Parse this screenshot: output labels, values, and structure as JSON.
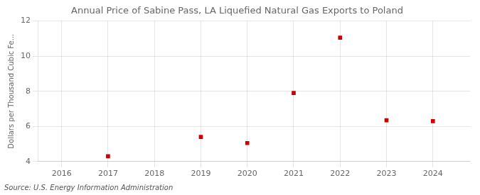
{
  "chart_data": {
    "type": "scatter",
    "title": "Annual Price of Sabine Pass, LA Liquefied Natural Gas Exports to Poland",
    "ylabel": "Dollars per Thousand Cubic Fe...",
    "source": "Source: U.S. Energy Information Administration",
    "x": [
      2017,
      2019,
      2020,
      2021,
      2022,
      2023,
      2024
    ],
    "values": [
      4.3,
      5.4,
      5.05,
      7.9,
      11.05,
      6.35,
      6.3
    ],
    "color": "#cc0000",
    "marker": "square",
    "xlim": [
      2015.5,
      2024.8
    ],
    "xticks": [
      2016,
      2017,
      2018,
      2019,
      2020,
      2021,
      2022,
      2023,
      2024
    ],
    "ylim": [
      4,
      12
    ],
    "yticks": [
      4,
      6,
      8,
      10,
      12
    ],
    "grid": true
  }
}
